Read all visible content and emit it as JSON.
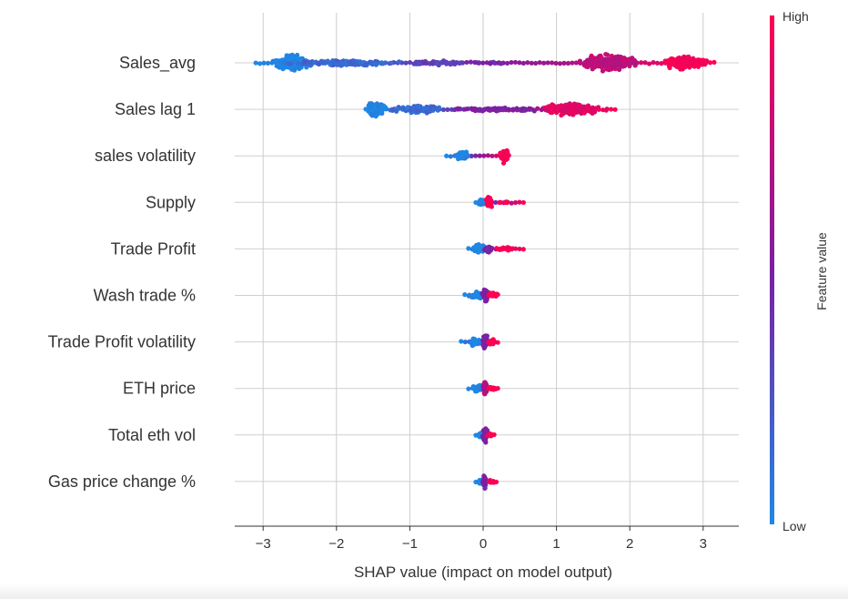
{
  "chart_data": {
    "type": "scatter",
    "subtype": "shap-beeswarm",
    "xlabel": "SHAP value (impact on model output)",
    "xlim": [
      -3.3,
      3.5
    ],
    "x_ticks": [
      -3,
      -2,
      -1,
      0,
      1,
      2,
      3
    ],
    "x_tick_labels": [
      "−3",
      "−2",
      "−1",
      "0",
      "1",
      "2",
      "3"
    ],
    "grid": true,
    "colorbar": {
      "label": "Feature value",
      "high_label": "High",
      "low_label": "Low",
      "low_color": "#1e88e5",
      "mid_color": "#7b1fa2",
      "high_color": "#ff0052"
    },
    "features": [
      {
        "name": "Sales_avg",
        "min": -3.1,
        "max": 3.15,
        "clusters": [
          {
            "c": -2.6,
            "w": 0.28,
            "h": 0.9,
            "v": 0.0,
            "n": 160
          },
          {
            "c": -1.9,
            "w": 0.9,
            "h": 0.35,
            "v": 0.15,
            "n": 140
          },
          {
            "c": -0.6,
            "w": 0.5,
            "h": 0.3,
            "v": 0.35,
            "n": 40
          },
          {
            "c": 0.1,
            "w": 0.3,
            "h": 0.12,
            "v": 0.45,
            "n": 8
          },
          {
            "c": 1.7,
            "w": 0.45,
            "h": 0.95,
            "v": 0.75,
            "n": 230
          },
          {
            "c": 2.75,
            "w": 0.35,
            "h": 0.75,
            "v": 0.98,
            "n": 180
          }
        ]
      },
      {
        "name": "Sales lag 1",
        "min": -1.6,
        "max": 1.8,
        "clusters": [
          {
            "c": -1.45,
            "w": 0.15,
            "h": 0.9,
            "v": 0.0,
            "n": 110
          },
          {
            "c": -0.9,
            "w": 0.45,
            "h": 0.45,
            "v": 0.15,
            "n": 90
          },
          {
            "c": 0.2,
            "w": 0.8,
            "h": 0.25,
            "v": 0.5,
            "n": 70
          },
          {
            "c": 1.2,
            "w": 0.55,
            "h": 0.7,
            "v": 0.9,
            "n": 200
          }
        ]
      },
      {
        "name": "sales volatility",
        "min": -0.5,
        "max": 0.35,
        "clusters": [
          {
            "c": -0.28,
            "w": 0.12,
            "h": 0.55,
            "v": 0.0,
            "n": 45
          },
          {
            "c": 0.28,
            "w": 0.07,
            "h": 0.75,
            "v": 1.0,
            "n": 55
          }
        ]
      },
      {
        "name": "Supply",
        "min": -0.1,
        "max": 0.55,
        "clusters": [
          {
            "c": -0.03,
            "w": 0.06,
            "h": 0.45,
            "v": 0.0,
            "n": 25
          },
          {
            "c": 0.08,
            "w": 0.05,
            "h": 0.7,
            "v": 1.0,
            "n": 60
          },
          {
            "c": 0.3,
            "w": 0.2,
            "h": 0.08,
            "v": 1.0,
            "n": 5
          }
        ]
      },
      {
        "name": "Trade Profit",
        "min": -0.2,
        "max": 0.55,
        "clusters": [
          {
            "c": -0.05,
            "w": 0.12,
            "h": 0.6,
            "v": 0.0,
            "n": 45
          },
          {
            "c": 0.06,
            "w": 0.06,
            "h": 0.4,
            "v": 0.5,
            "n": 20
          },
          {
            "c": 0.28,
            "w": 0.22,
            "h": 0.2,
            "v": 1.0,
            "n": 25
          }
        ]
      },
      {
        "name": "Wash trade %",
        "min": -0.25,
        "max": 0.2,
        "clusters": [
          {
            "c": -0.08,
            "w": 0.13,
            "h": 0.4,
            "v": 0.0,
            "n": 35
          },
          {
            "c": 0.03,
            "w": 0.05,
            "h": 0.8,
            "v": 0.5,
            "n": 55
          },
          {
            "c": 0.12,
            "w": 0.07,
            "h": 0.4,
            "v": 1.0,
            "n": 25
          }
        ]
      },
      {
        "name": "Trade Profit volatility",
        "min": -0.3,
        "max": 0.2,
        "clusters": [
          {
            "c": -0.1,
            "w": 0.15,
            "h": 0.4,
            "v": 0.0,
            "n": 35
          },
          {
            "c": 0.03,
            "w": 0.04,
            "h": 0.85,
            "v": 0.5,
            "n": 55
          },
          {
            "c": 0.12,
            "w": 0.07,
            "h": 0.35,
            "v": 1.0,
            "n": 20
          }
        ]
      },
      {
        "name": "ETH price",
        "min": -0.2,
        "max": 0.2,
        "clusters": [
          {
            "c": -0.06,
            "w": 0.1,
            "h": 0.4,
            "v": 0.0,
            "n": 30
          },
          {
            "c": 0.03,
            "w": 0.04,
            "h": 0.85,
            "v": 0.7,
            "n": 60
          },
          {
            "c": 0.12,
            "w": 0.07,
            "h": 0.25,
            "v": 1.0,
            "n": 15
          }
        ]
      },
      {
        "name": "Total eth vol",
        "min": -0.1,
        "max": 0.15,
        "clusters": [
          {
            "c": -0.03,
            "w": 0.05,
            "h": 0.4,
            "v": 0.0,
            "n": 25
          },
          {
            "c": 0.03,
            "w": 0.04,
            "h": 0.8,
            "v": 0.5,
            "n": 50
          },
          {
            "c": 0.09,
            "w": 0.05,
            "h": 0.25,
            "v": 1.0,
            "n": 12
          }
        ]
      },
      {
        "name": "Gas price change %",
        "min": -0.1,
        "max": 0.18,
        "clusters": [
          {
            "c": -0.03,
            "w": 0.05,
            "h": 0.3,
            "v": 0.0,
            "n": 20
          },
          {
            "c": 0.02,
            "w": 0.03,
            "h": 0.8,
            "v": 0.5,
            "n": 45
          },
          {
            "c": 0.1,
            "w": 0.06,
            "h": 0.25,
            "v": 1.0,
            "n": 12
          }
        ]
      }
    ]
  }
}
